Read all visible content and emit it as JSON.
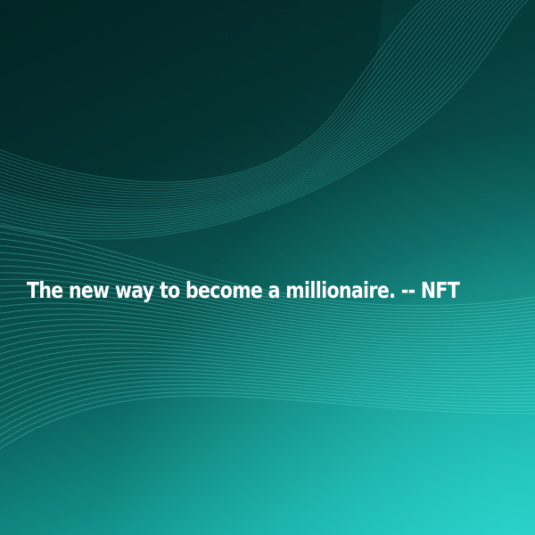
{
  "image": {
    "headline": "The new way to become a millionaire. -- NFT",
    "background_colors": {
      "dark": "#03302f",
      "mid": "#0a5a56",
      "light": "#1fc7be",
      "line": "#5fe3da"
    }
  }
}
